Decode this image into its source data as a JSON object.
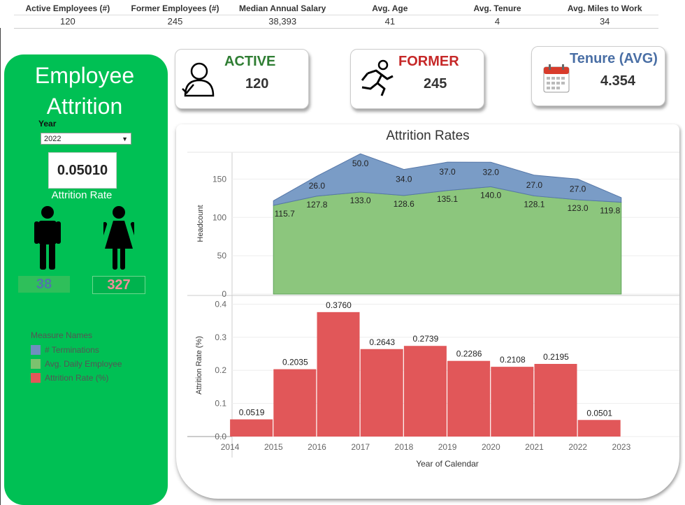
{
  "kpis": [
    {
      "label": "Active Employees (#)",
      "value": "120"
    },
    {
      "label": "Former Employees (#)",
      "value": "245"
    },
    {
      "label": "Median Annual Salary",
      "value": "38,393"
    },
    {
      "label": "Avg. Age",
      "value": "41"
    },
    {
      "label": "Avg. Tenure",
      "value": "4"
    },
    {
      "label": "Avg. Miles to Work",
      "value": "34"
    }
  ],
  "sidebar": {
    "title_line1": "Employee",
    "title_line2": "Attrition",
    "year_label": "Year",
    "year_selected": "2022",
    "attrition_rate": "0.05010",
    "attrition_rate_label": "Attrition Rate",
    "male_count": "38",
    "female_count": "327",
    "male_color": "#4e79a7",
    "female_color": "#f28e9b"
  },
  "legend": {
    "title": "Measure Names",
    "items": [
      {
        "label": "# Terminations",
        "color": "#6f8fbf"
      },
      {
        "label": "Avg. Daily Employee",
        "color": "#7cc26e"
      },
      {
        "label": "Attrition Rate (%)",
        "color": "#e15759"
      }
    ]
  },
  "cards": {
    "active": {
      "title": "ACTIVE",
      "value": "120",
      "color": "#2e7d32"
    },
    "former": {
      "title": "FORMER",
      "value": "245",
      "color": "#c62828"
    },
    "tenure": {
      "title": "Tenure (AVG)",
      "value": "4.354",
      "color": "#4a6fa5"
    }
  },
  "chart_data": [
    {
      "type": "area",
      "title": "Attrition Rates",
      "ylabel": "Headcount",
      "ylim": [
        0,
        185
      ],
      "yticks": [
        0,
        50,
        100,
        150
      ],
      "x": [
        2014.5,
        2015.5,
        2016.5,
        2017.5,
        2018.5,
        2019.5,
        2020.5,
        2021.5,
        2022.5
      ],
      "series": [
        {
          "name": "Avg. Daily Employee",
          "color": "#8cc67d",
          "values": [
            115.7,
            127.8,
            133.0,
            128.6,
            135.1,
            140.0,
            128.1,
            123.0,
            119.8
          ],
          "labels": [
            "115.7",
            "127.8",
            "133.0",
            "128.6",
            "135.1",
            "140.0",
            "128.1",
            "123.0",
            "119.8"
          ]
        },
        {
          "name": "# Terminations",
          "color": "#7a9cc6",
          "values": [
            6.0,
            26.0,
            50.0,
            34.0,
            37.0,
            32.0,
            27.0,
            27.0,
            6.0
          ],
          "labels": [
            "",
            "26.0",
            "50.0",
            "34.0",
            "37.0",
            "32.0",
            "27.0",
            "27.0",
            ""
          ]
        }
      ]
    },
    {
      "type": "bar",
      "ylabel": "Attrition Rate (%)",
      "xlabel": "Year of Calendar",
      "ylim": [
        0,
        0.42
      ],
      "yticks": [
        0.0,
        0.1,
        0.2,
        0.3,
        0.4
      ],
      "ytick_labels": [
        "0.0",
        "0.1",
        "0.2",
        "0.3",
        "0.4"
      ],
      "xticks": [
        "2014",
        "2015",
        "2016",
        "2017",
        "2018",
        "2019",
        "2020",
        "2021",
        "2022",
        "2023"
      ],
      "color": "#e15759",
      "bars": [
        {
          "x": 2014,
          "value": 0.0519,
          "label": "0.0519"
        },
        {
          "x": 2015,
          "value": 0.2035,
          "label": "0.2035"
        },
        {
          "x": 2016,
          "value": 0.376,
          "label": "0.3760"
        },
        {
          "x": 2017,
          "value": 0.2643,
          "label": "0.2643"
        },
        {
          "x": 2018,
          "value": 0.2739,
          "label": "0.2739"
        },
        {
          "x": 2019,
          "value": 0.2286,
          "label": "0.2286"
        },
        {
          "x": 2020,
          "value": 0.2108,
          "label": "0.2108"
        },
        {
          "x": 2021,
          "value": 0.2195,
          "label": "0.2195"
        },
        {
          "x": 2022,
          "value": 0.0501,
          "label": "0.0501"
        }
      ]
    }
  ]
}
